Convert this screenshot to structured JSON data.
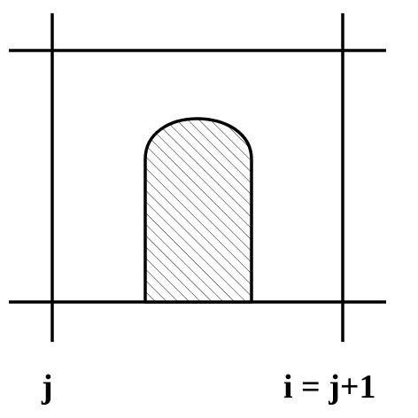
{
  "labels": {
    "left": "j",
    "right": "i = j+1"
  },
  "colors": {
    "line": "#000000",
    "background": "#ffffff",
    "hatch": "#000000"
  },
  "figure": {
    "shaded_region_pattern": "diagonal-hatch"
  }
}
